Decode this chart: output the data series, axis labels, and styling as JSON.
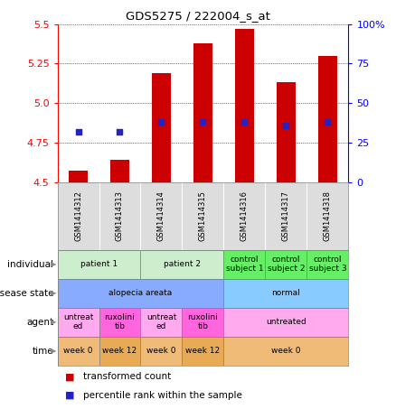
{
  "title": "GDS5275 / 222004_s_at",
  "samples": [
    "GSM1414312",
    "GSM1414313",
    "GSM1414314",
    "GSM1414315",
    "GSM1414316",
    "GSM1414317",
    "GSM1414318"
  ],
  "bar_values": [
    4.57,
    4.64,
    5.19,
    5.38,
    5.47,
    5.13,
    5.3
  ],
  "dot_values": [
    4.82,
    4.82,
    4.88,
    4.88,
    4.88,
    4.86,
    4.88
  ],
  "ylim": [
    4.5,
    5.5
  ],
  "yticks_left": [
    4.5,
    4.75,
    5.0,
    5.25,
    5.5
  ],
  "yticks_right_vals": [
    0,
    25,
    50,
    75,
    100
  ],
  "yticks_right_labels": [
    "0",
    "25",
    "50",
    "75",
    "100%"
  ],
  "bar_color": "#cc0000",
  "dot_color": "#2222cc",
  "bar_bottom": 4.5,
  "annotations": {
    "individual": {
      "groups": [
        {
          "text": "patient 1",
          "cols": [
            0,
            1
          ],
          "color": "#cceecc"
        },
        {
          "text": "patient 2",
          "cols": [
            2,
            3
          ],
          "color": "#cceecc"
        },
        {
          "text": "control\nsubject 1",
          "cols": [
            4
          ],
          "color": "#66ee66"
        },
        {
          "text": "control\nsubject 2",
          "cols": [
            5
          ],
          "color": "#66ee66"
        },
        {
          "text": "control\nsubject 3",
          "cols": [
            6
          ],
          "color": "#66ee66"
        }
      ]
    },
    "disease_state": {
      "groups": [
        {
          "text": "alopecia areata",
          "cols": [
            0,
            1,
            2,
            3
          ],
          "color": "#88aaff"
        },
        {
          "text": "normal",
          "cols": [
            4,
            5,
            6
          ],
          "color": "#88ccff"
        }
      ]
    },
    "agent": {
      "groups": [
        {
          "text": "untreat\ned",
          "cols": [
            0
          ],
          "color": "#ffaaee"
        },
        {
          "text": "ruxolini\ntib",
          "cols": [
            1
          ],
          "color": "#ff66dd"
        },
        {
          "text": "untreat\ned",
          "cols": [
            2
          ],
          "color": "#ffaaee"
        },
        {
          "text": "ruxolini\ntib",
          "cols": [
            3
          ],
          "color": "#ff66dd"
        },
        {
          "text": "untreated",
          "cols": [
            4,
            5,
            6
          ],
          "color": "#ffaaee"
        }
      ]
    },
    "time": {
      "groups": [
        {
          "text": "week 0",
          "cols": [
            0
          ],
          "color": "#f0bb77"
        },
        {
          "text": "week 12",
          "cols": [
            1
          ],
          "color": "#e8aa55"
        },
        {
          "text": "week 0",
          "cols": [
            2
          ],
          "color": "#f0bb77"
        },
        {
          "text": "week 12",
          "cols": [
            3
          ],
          "color": "#e8aa55"
        },
        {
          "text": "week 0",
          "cols": [
            4,
            5,
            6
          ],
          "color": "#f0bb77"
        }
      ]
    }
  },
  "annot_labels": [
    "individual",
    "disease state",
    "agent",
    "time"
  ],
  "annot_keys": [
    "individual",
    "disease_state",
    "agent",
    "time"
  ]
}
